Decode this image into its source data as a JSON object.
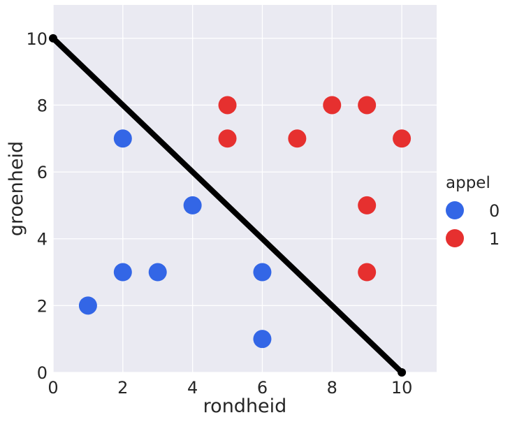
{
  "chart_data": {
    "type": "scatter",
    "xlabel": "rondheid",
    "ylabel": "groenheid",
    "xlim": [
      0,
      11
    ],
    "ylim": [
      0,
      11
    ],
    "xticks": [
      0,
      2,
      4,
      6,
      8,
      10
    ],
    "yticks": [
      0,
      2,
      4,
      6,
      8,
      10
    ],
    "grid": true,
    "legend": {
      "title": "appel",
      "placement": "right",
      "entries": [
        {
          "label": "0",
          "color": "#3366e6"
        },
        {
          "label": "1",
          "color": "#e6302f"
        }
      ]
    },
    "series": [
      {
        "name": "0",
        "color": "#3366e6",
        "points": [
          [
            1,
            2
          ],
          [
            2,
            3
          ],
          [
            3,
            3
          ],
          [
            2,
            7
          ],
          [
            4,
            5
          ],
          [
            6,
            3
          ],
          [
            6,
            1
          ]
        ]
      },
      {
        "name": "1",
        "color": "#e6302f",
        "points": [
          [
            5,
            8
          ],
          [
            5,
            7
          ],
          [
            7,
            7
          ],
          [
            8,
            8
          ],
          [
            9,
            8
          ],
          [
            10,
            7
          ],
          [
            9,
            5
          ],
          [
            9,
            3
          ]
        ]
      }
    ],
    "line": {
      "color": "#000000",
      "points": [
        [
          0,
          10
        ],
        [
          10,
          0
        ]
      ]
    },
    "background_color": "#eaeaf2",
    "grid_color": "#ffffff"
  }
}
